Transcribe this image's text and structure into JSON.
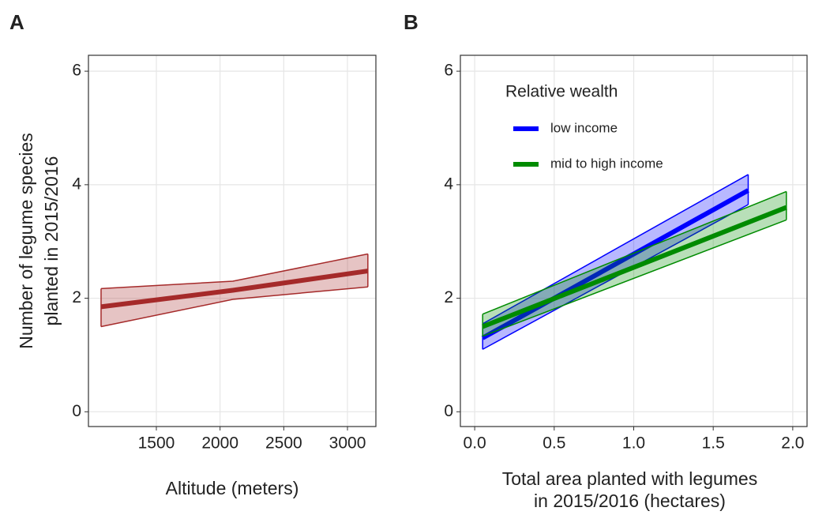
{
  "chart_data": [
    {
      "type": "line",
      "panel_label": "A",
      "ylabel": [
        "Number of legume species",
        "planted in 2015/2016"
      ],
      "xlabel": [
        "Altitude (meters)"
      ],
      "xlim": [
        967,
        3223
      ],
      "ylim": [
        -0.26,
        6.28
      ],
      "xticks": [
        1500,
        2000,
        2500,
        3000
      ],
      "yticks": [
        0,
        2,
        4,
        6
      ],
      "grid": true,
      "series": [
        {
          "color": "#a52a2a",
          "x": [
            1066,
            2100,
            3160
          ],
          "values": [
            1.85,
            2.14,
            2.48
          ],
          "lower": [
            1.5,
            1.98,
            2.2
          ],
          "upper": [
            2.17,
            2.3,
            2.78
          ]
        }
      ]
    },
    {
      "type": "line",
      "panel_label": "B",
      "xlabel": [
        "Total area planted with legumes",
        "in 2015/2016 (hectares)"
      ],
      "xlim": [
        -0.09,
        2.09
      ],
      "ylim": [
        -0.26,
        6.28
      ],
      "xticks": [
        {
          "value": 0,
          "label": "0.0"
        },
        0.5,
        {
          "value": 1,
          "label": "1.0"
        },
        1.5,
        {
          "value": 2,
          "label": "2.0"
        }
      ],
      "yticks": [
        0,
        2,
        4,
        6
      ],
      "grid": true,
      "legend_title": "Relative wealth",
      "legend": "top-left",
      "series": [
        {
          "name": "low income",
          "color": "#0000ff",
          "x": [
            0.05,
            1.72
          ],
          "values": [
            1.3,
            3.9
          ],
          "lower": [
            1.1,
            3.65
          ],
          "upper": [
            1.55,
            4.18
          ]
        },
        {
          "name": "mid to high income",
          "color": "#008b00",
          "x": [
            0.05,
            1.96
          ],
          "values": [
            1.5,
            3.6
          ],
          "lower": [
            1.33,
            3.38
          ],
          "upper": [
            1.72,
            3.88
          ]
        }
      ]
    }
  ]
}
